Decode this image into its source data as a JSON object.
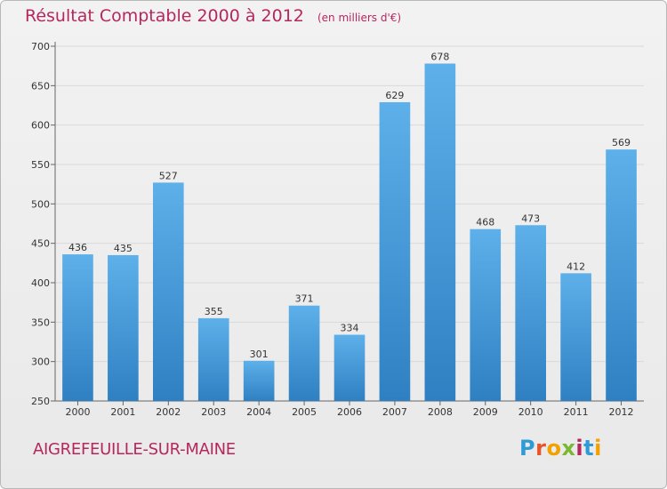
{
  "header": {
    "title": "Résultat Comptable 2000 à 2012",
    "unit": "(en milliers d'€)"
  },
  "footer": {
    "town": "AIGREFEUILLE-SUR-MAINE",
    "logo": "Proxiti"
  },
  "colors": {
    "bar_light": "#5eb0ea",
    "bar_dark": "#2e80c2",
    "title": "#b5285e"
  },
  "chart_data": {
    "type": "bar",
    "categories": [
      "2000",
      "2001",
      "2002",
      "2003",
      "2004",
      "2005",
      "2006",
      "2007",
      "2008",
      "2009",
      "2010",
      "2011",
      "2012"
    ],
    "values": [
      436,
      435,
      527,
      355,
      301,
      371,
      334,
      629,
      678,
      468,
      473,
      412,
      569
    ],
    "ylim": [
      250,
      700
    ],
    "yticks": [
      250,
      300,
      350,
      400,
      450,
      500,
      550,
      600,
      650,
      700
    ],
    "grid": true,
    "title": "Résultat Comptable 2000 à 2012",
    "xlabel": "",
    "ylabel": ""
  }
}
